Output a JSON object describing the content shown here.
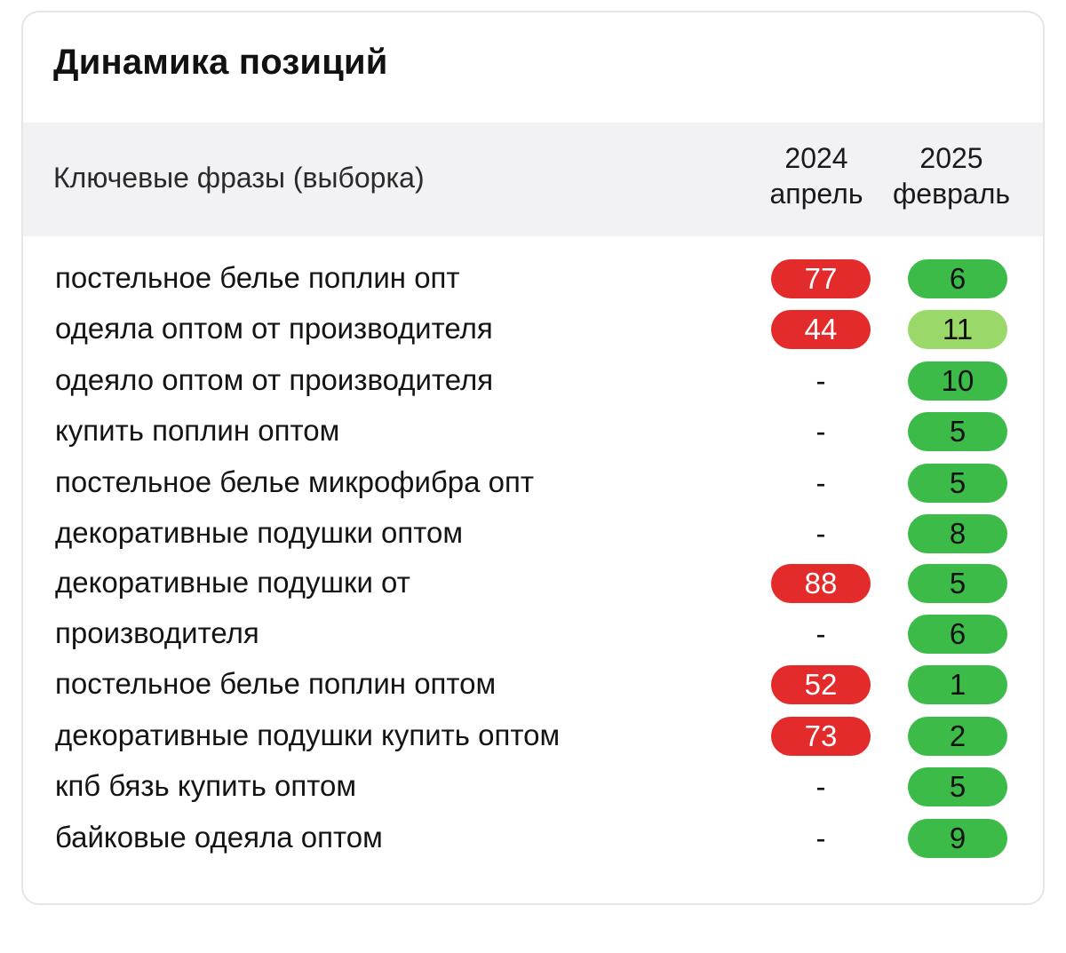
{
  "card": {
    "title": "Динамика позиций"
  },
  "table": {
    "header": {
      "phrases": "Ключевые фразы (выборка)",
      "col1_year": "2024",
      "col1_month": "апрель",
      "col2_year": "2025",
      "col2_month": "февраль"
    },
    "rows": [
      {
        "phrase": "постельное белье поплин опт",
        "v2024": "77",
        "v2025": "6"
      },
      {
        "phrase": "одеяла оптом от производителя",
        "v2024": "44",
        "v2025": "11"
      },
      {
        "phrase": "одеяло оптом от производителя",
        "v2024": "-",
        "v2025": "10"
      },
      {
        "phrase": "купить поплин оптом",
        "v2024": "-",
        "v2025": "5"
      },
      {
        "phrase": "постельное белье микрофибра опт",
        "v2024": "-",
        "v2025": "5"
      },
      {
        "phrase": "декоративные подушки оптом",
        "v2024": "-",
        "v2025": "8"
      },
      {
        "phrase": "декоративные подушки от",
        "v2024": "88",
        "v2025": "5"
      },
      {
        "phrase": "производителя",
        "v2024": "-",
        "v2025": "6"
      },
      {
        "phrase": "постельное белье поплин оптом",
        "v2024": "52",
        "v2025": "1"
      },
      {
        "phrase": "декоративные подушки купить оптом",
        "v2024": "73",
        "v2025": "2"
      },
      {
        "phrase": "кпб бязь купить оптом",
        "v2024": "-",
        "v2025": "5"
      },
      {
        "phrase": "байковые одеяла оптом",
        "v2024": "-",
        "v2025": "9"
      }
    ]
  },
  "colors": {
    "bad": "#e32b2b",
    "good": "#3dbb48",
    "ok": "#9ad86a",
    "header_bg": "#f2f2f4"
  }
}
